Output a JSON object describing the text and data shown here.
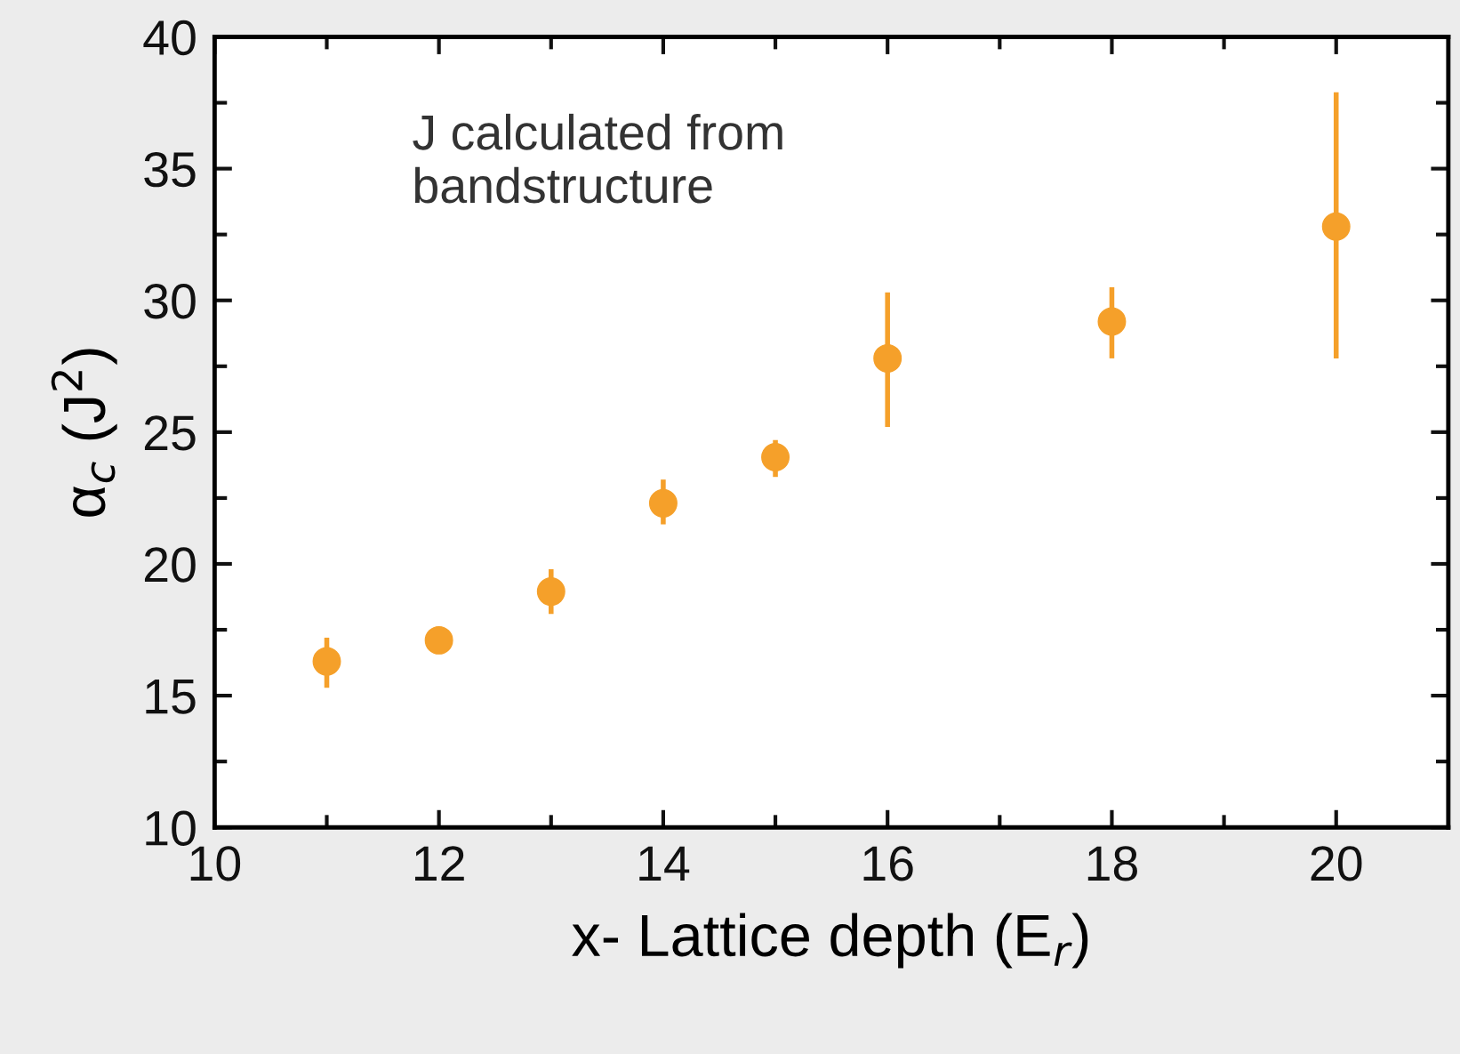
{
  "chart_data": {
    "type": "scatter",
    "xlabel": "x- Lattice depth (E$_{r}$)",
    "ylabel": "α$_{c}$ (J$^{2}$)",
    "x": [
      11,
      12,
      13,
      14,
      15,
      16,
      18,
      20
    ],
    "series": [
      {
        "color": "#f5a02a",
        "values": [
          16.3,
          17.1,
          18.95,
          22.3,
          24.05,
          27.8,
          29.2,
          32.8
        ],
        "errors": [
          [
            15.3,
            17.2
          ],
          null,
          [
            18.1,
            19.8
          ],
          [
            21.5,
            23.2
          ],
          [
            23.3,
            24.7
          ],
          [
            25.2,
            30.3
          ],
          [
            27.8,
            30.5
          ],
          [
            27.8,
            37.9
          ]
        ]
      }
    ],
    "marker": "circle",
    "xlim": [
      10,
      21
    ],
    "ylim": [
      10,
      40
    ],
    "xticks": [
      10,
      {
        "value": 11,
        "label": null
      },
      12,
      {
        "value": 13,
        "label": null
      },
      14,
      {
        "value": 15,
        "label": null
      },
      16,
      {
        "value": 17,
        "label": null
      },
      18,
      {
        "value": 19,
        "label": null
      },
      20
    ],
    "yticks": [
      10,
      {
        "value": 12.5,
        "label": null
      },
      15,
      {
        "value": 17.5,
        "label": null
      },
      20,
      {
        "value": 22.5,
        "label": null
      },
      25,
      {
        "value": 27.5,
        "label": null
      },
      30,
      {
        "value": 32.5,
        "label": null
      },
      35,
      {
        "value": 37.5,
        "label": null
      },
      40
    ],
    "annotations": [
      "J calculated from bandstructure"
    ],
    "grid": false,
    "legend": false
  }
}
